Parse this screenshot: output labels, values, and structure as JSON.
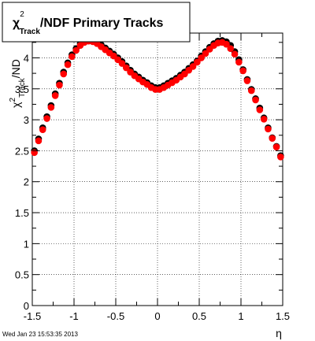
{
  "chart_data": {
    "type": "scatter",
    "title": {
      "prefix": "χ",
      "sup": "2",
      "sub": "Track",
      "suffix": "/NDF  Primary Tracks"
    },
    "xlabel": "η",
    "ylabel": {
      "prefix": "χ",
      "sup": "2",
      "sub": "Track",
      "suffix": "/ND"
    },
    "xlim": [
      -1.5,
      1.5
    ],
    "ylim": [
      0,
      4.4
    ],
    "xticks": [
      "-1.5",
      "-1",
      "-0.5",
      "0",
      "0.5",
      "1",
      "1.5"
    ],
    "yticks": [
      "0",
      "0.5",
      "1",
      "1.5",
      "2",
      "2.5",
      "3",
      "3.5",
      "4"
    ],
    "grid": true,
    "series": [
      {
        "color": "#000000",
        "x": [
          -1.475,
          -1.425,
          -1.375,
          -1.325,
          -1.275,
          -1.225,
          -1.175,
          -1.125,
          -1.075,
          -1.025,
          -0.975,
          -0.925,
          -0.875,
          -0.825,
          -0.775,
          -0.725,
          -0.675,
          -0.625,
          -0.575,
          -0.525,
          -0.475,
          -0.425,
          -0.375,
          -0.325,
          -0.275,
          -0.225,
          -0.175,
          -0.125,
          -0.075,
          -0.025,
          0.025,
          0.075,
          0.125,
          0.175,
          0.225,
          0.275,
          0.325,
          0.375,
          0.425,
          0.475,
          0.525,
          0.575,
          0.625,
          0.675,
          0.725,
          0.775,
          0.825,
          0.875,
          0.925,
          0.975,
          1.025,
          1.075,
          1.125,
          1.175,
          1.225,
          1.275,
          1.325,
          1.375,
          1.425,
          1.475
        ],
        "values": [
          2.5,
          2.69,
          2.87,
          3.05,
          3.23,
          3.42,
          3.59,
          3.77,
          3.92,
          4.05,
          4.15,
          4.23,
          4.28,
          4.29,
          4.28,
          4.25,
          4.21,
          4.16,
          4.11,
          4.06,
          4.0,
          3.94,
          3.87,
          3.8,
          3.74,
          3.69,
          3.64,
          3.6,
          3.55,
          3.52,
          3.52,
          3.55,
          3.59,
          3.63,
          3.67,
          3.72,
          3.77,
          3.83,
          3.89,
          3.95,
          4.03,
          4.1,
          4.17,
          4.23,
          4.27,
          4.28,
          4.26,
          4.2,
          4.1,
          3.97,
          3.81,
          3.65,
          3.49,
          3.34,
          3.19,
          3.03,
          2.87,
          2.71,
          2.57,
          2.42
        ]
      },
      {
        "color": "#ff0000",
        "x": [
          -1.475,
          -1.425,
          -1.375,
          -1.325,
          -1.275,
          -1.225,
          -1.175,
          -1.125,
          -1.075,
          -1.025,
          -0.975,
          -0.925,
          -0.875,
          -0.825,
          -0.775,
          -0.725,
          -0.675,
          -0.625,
          -0.575,
          -0.525,
          -0.475,
          -0.425,
          -0.375,
          -0.325,
          -0.275,
          -0.225,
          -0.175,
          -0.125,
          -0.075,
          -0.025,
          0.025,
          0.075,
          0.125,
          0.175,
          0.225,
          0.275,
          0.325,
          0.375,
          0.425,
          0.475,
          0.525,
          0.575,
          0.625,
          0.675,
          0.725,
          0.775,
          0.825,
          0.875,
          0.925,
          0.975,
          1.025,
          1.075,
          1.125,
          1.175,
          1.225,
          1.275,
          1.325,
          1.375,
          1.425,
          1.475
        ],
        "values": [
          2.47,
          2.66,
          2.84,
          3.02,
          3.2,
          3.39,
          3.56,
          3.74,
          3.89,
          4.02,
          4.12,
          4.2,
          4.25,
          4.27,
          4.26,
          4.23,
          4.18,
          4.13,
          4.08,
          4.03,
          3.97,
          3.91,
          3.84,
          3.77,
          3.71,
          3.66,
          3.61,
          3.57,
          3.52,
          3.49,
          3.49,
          3.52,
          3.56,
          3.6,
          3.64,
          3.69,
          3.74,
          3.8,
          3.86,
          3.93,
          4.0,
          4.07,
          4.14,
          4.2,
          4.24,
          4.25,
          4.22,
          4.15,
          4.06,
          3.93,
          3.79,
          3.63,
          3.47,
          3.32,
          3.16,
          3.01,
          2.85,
          2.7,
          2.56,
          2.4
        ]
      }
    ]
  },
  "footer": {
    "timestamp": "Wed Jan 23 15:53:35 2013"
  }
}
